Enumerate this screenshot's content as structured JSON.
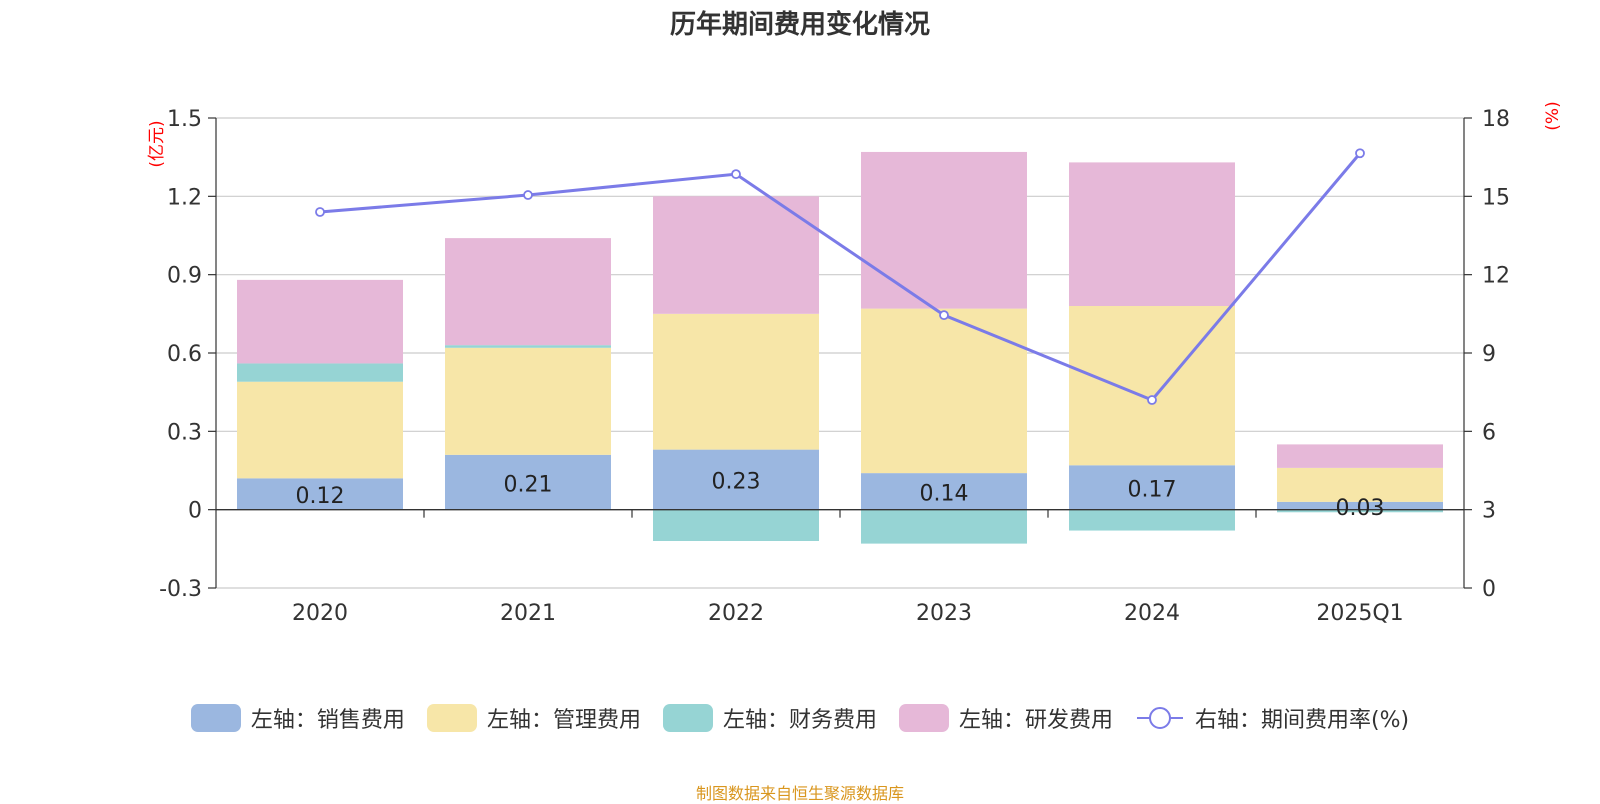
{
  "title": "历年期间费用变化情况",
  "source_note": "制图数据来自恒生聚源数据库",
  "colors": {
    "sales": "#9bb7e0",
    "admin": "#f7e6a8",
    "finance": "#96d4d4",
    "rd": "#e6b8d8",
    "rate": "#7b7be8",
    "axis_unit": "#ff0000"
  },
  "legend": [
    {
      "key": "sales",
      "label": "左轴：销售费用"
    },
    {
      "key": "admin",
      "label": "左轴：管理费用"
    },
    {
      "key": "finance",
      "label": "左轴：财务费用"
    },
    {
      "key": "rd",
      "label": "左轴：研发费用"
    },
    {
      "key": "rate",
      "label": "右轴：期间费用率(%)"
    }
  ],
  "chart_data": {
    "type": "bar",
    "stacked": true,
    "title": "历年期间费用变化情况",
    "categories": [
      "2020",
      "2021",
      "2022",
      "2023",
      "2024",
      "2025Q1"
    ],
    "left_axis": {
      "unit_label": "(亿元)",
      "range": [
        -0.3,
        1.5
      ],
      "ticks": [
        "-0.3",
        "0",
        "0.3",
        "0.6",
        "0.9",
        "1.2",
        "1.5"
      ]
    },
    "right_axis": {
      "unit_label": "(%)",
      "range": [
        0,
        18
      ],
      "ticks": [
        "0",
        "3",
        "6",
        "9",
        "12",
        "15",
        "18"
      ]
    },
    "series": [
      {
        "name": "左轴：销售费用",
        "key": "sales",
        "axis": "left",
        "values": [
          0.12,
          0.21,
          0.23,
          0.14,
          0.17,
          0.03
        ]
      },
      {
        "name": "左轴：管理费用",
        "key": "admin",
        "axis": "left",
        "values": [
          0.37,
          0.41,
          0.52,
          0.63,
          0.61,
          0.13
        ]
      },
      {
        "name": "左轴：财务费用",
        "key": "finance",
        "axis": "left",
        "values": [
          0.07,
          0.01,
          -0.12,
          -0.13,
          -0.08,
          -0.01
        ]
      },
      {
        "name": "左轴：研发费用",
        "key": "rd",
        "axis": "left",
        "values": [
          0.32,
          0.41,
          0.45,
          0.6,
          0.55,
          0.09
        ]
      },
      {
        "name": "右轴：期间费用率(%)",
        "key": "rate",
        "axis": "right",
        "type": "line",
        "values": [
          14.4,
          15.05,
          15.85,
          10.45,
          7.2,
          16.65
        ]
      }
    ],
    "data_labels": [
      "0.12",
      "0.21",
      "0.23",
      "0.14",
      "0.17",
      "0.03"
    ],
    "grid": true,
    "legend_position": "bottom"
  }
}
